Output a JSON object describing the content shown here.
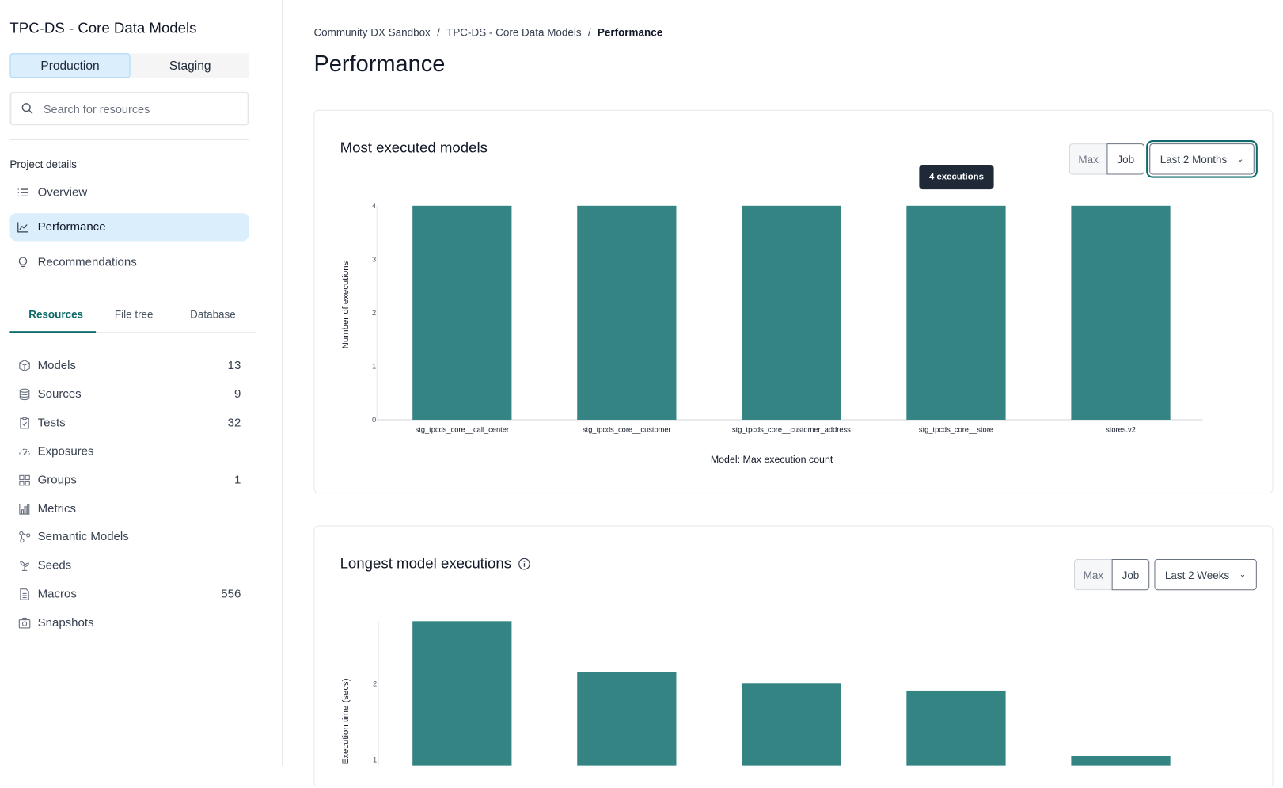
{
  "sidebar": {
    "project_title": "TPC-DS - Core Data Models",
    "environments": [
      {
        "label": "Production",
        "active": true
      },
      {
        "label": "Staging",
        "active": false
      }
    ],
    "search_placeholder": "Search for resources",
    "section_label": "Project details",
    "nav": [
      {
        "label": "Overview",
        "icon": "list-icon"
      },
      {
        "label": "Performance",
        "icon": "line-chart-icon",
        "active": true
      },
      {
        "label": "Recommendations",
        "icon": "lightbulb-icon"
      }
    ],
    "tabs": [
      {
        "label": "Resources",
        "active": true
      },
      {
        "label": "File tree"
      },
      {
        "label": "Database"
      }
    ],
    "resources": [
      {
        "label": "Models",
        "count": "13",
        "icon": "cube-icon"
      },
      {
        "label": "Sources",
        "count": "9",
        "icon": "database-icon"
      },
      {
        "label": "Tests",
        "count": "32",
        "icon": "clipboard-check-icon"
      },
      {
        "label": "Exposures",
        "count": "",
        "icon": "gauge-icon"
      },
      {
        "label": "Groups",
        "count": "1",
        "icon": "grid-icon"
      },
      {
        "label": "Metrics",
        "count": "",
        "icon": "bar-chart-icon"
      },
      {
        "label": "Semantic Models",
        "count": "",
        "icon": "nodes-icon"
      },
      {
        "label": "Seeds",
        "count": "",
        "icon": "sprout-icon"
      },
      {
        "label": "Macros",
        "count": "556",
        "icon": "file-text-icon"
      },
      {
        "label": "Snapshots",
        "count": "",
        "icon": "camera-icon"
      }
    ]
  },
  "breadcrumb": [
    "Community DX Sandbox",
    "TPC-DS - Core Data Models",
    "Performance"
  ],
  "page_title": "Performance",
  "cards": [
    {
      "title": "Most executed models",
      "seg": [
        "Max",
        "Job"
      ],
      "range": "Last 2 Months",
      "tooltip": "4 executions"
    },
    {
      "title": "Longest model executions",
      "seg": [
        "Max",
        "Job"
      ],
      "range": "Last 2 Weeks"
    }
  ],
  "colors": {
    "bar": "#358484",
    "accent": "#0f6b6b",
    "active_bg": "#dbeefc"
  },
  "chart_data": [
    {
      "type": "bar",
      "title": "Most executed models",
      "categories": [
        "stg_tpcds_core__call_center",
        "stg_tpcds_core__customer",
        "stg_tpcds_core__customer_address",
        "stg_tpcds_core__store",
        "stores.v2"
      ],
      "values": [
        4,
        4,
        4,
        4,
        4
      ],
      "xlabel": "Model: Max execution count",
      "ylabel": "Number of executions",
      "ylim": [
        0,
        4
      ],
      "yticks": [
        "0",
        "1",
        "2",
        "3",
        "4"
      ],
      "grid": false
    },
    {
      "type": "bar",
      "title": "Longest model executions",
      "values": [
        2.82,
        2.15,
        2.0,
        1.91,
        1.05
      ],
      "ylabel": "Execution time (secs)",
      "yticks": [
        "1",
        "2"
      ],
      "grid": false
    }
  ]
}
